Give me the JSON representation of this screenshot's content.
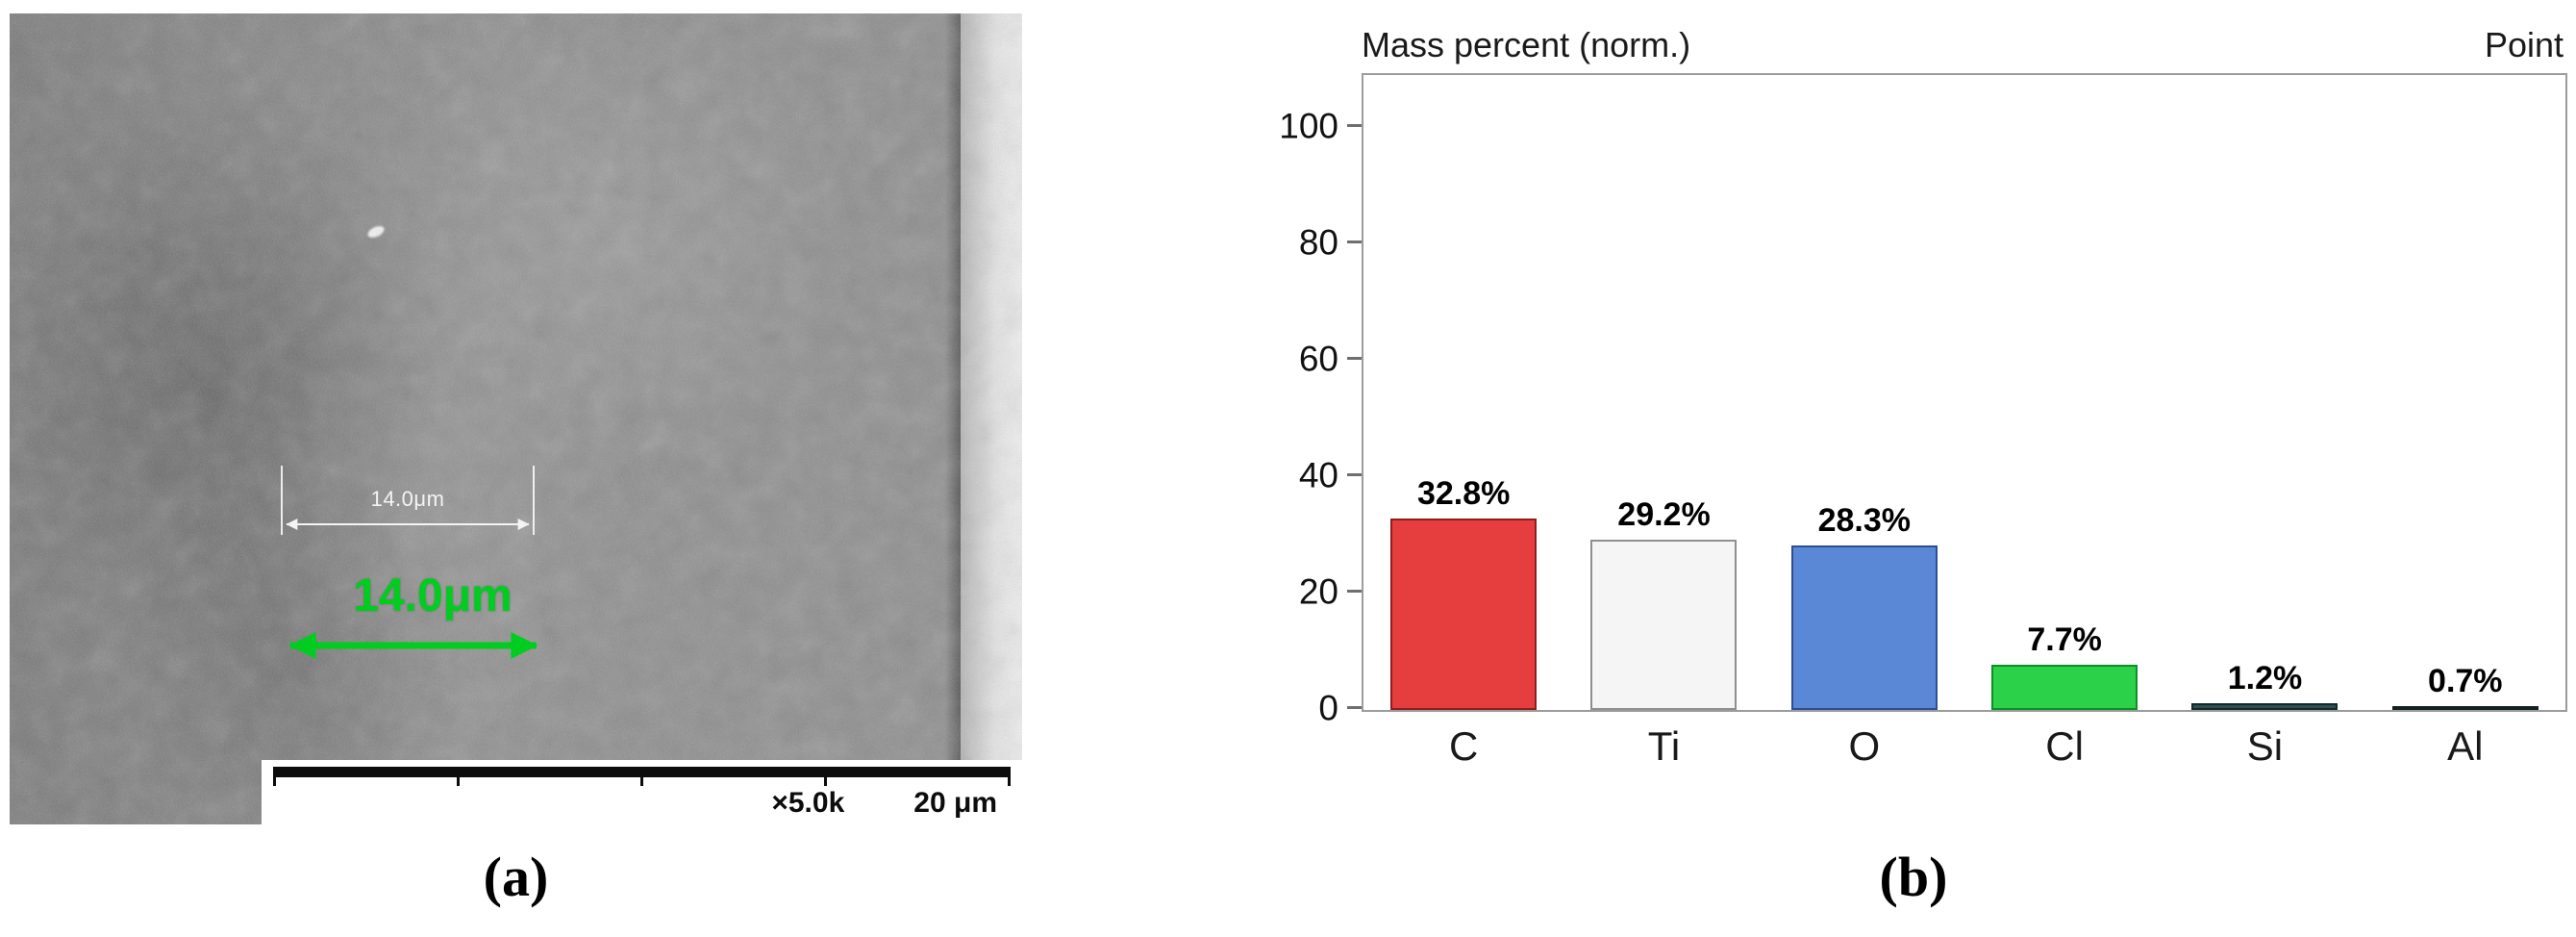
{
  "figure": {
    "panel_a": {
      "label": "(a)",
      "sem": {
        "green_measurement": "14.0μm",
        "white_measurement": "14.0μm",
        "magnification": "×5.0k",
        "scale_length": "20 μm"
      }
    },
    "panel_b": {
      "label": "(b)"
    }
  },
  "chart_data": {
    "type": "bar",
    "title": "Mass percent (norm.)",
    "corner_label": "Point",
    "categories": [
      "C",
      "Ti",
      "O",
      "Cl",
      "Si",
      "Al"
    ],
    "values": [
      32.8,
      29.2,
      28.3,
      7.7,
      1.2,
      0.7
    ],
    "value_labels": [
      "32.8%",
      "29.2%",
      "28.3%",
      "7.7%",
      "1.2%",
      "0.7%"
    ],
    "bar_colors": [
      "#e63e3e",
      "#f5f5f5",
      "#5b87d7",
      "#2bd249",
      "#2d5151",
      "#254444"
    ],
    "bar_border_colors": [
      "#8f1d1d",
      "#8f8f8f",
      "#2c4e93",
      "#0c8f24",
      "#132a2a",
      "#112222"
    ],
    "yticks": [
      0,
      20,
      40,
      60,
      80,
      100
    ],
    "ylim": [
      0,
      109
    ],
    "xlabel": "",
    "ylabel": "",
    "grid": false,
    "legend": false
  },
  "theme": {
    "annotation_green": "#00cd1f",
    "sem_base": "#8d8d8d",
    "chart_border": "#9c9c9c"
  }
}
